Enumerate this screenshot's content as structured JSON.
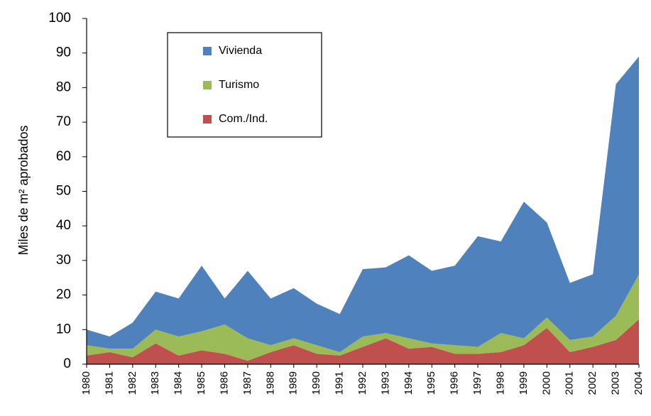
{
  "chart_data": {
    "type": "stacked_area",
    "y_label": "Miles de m² aprobados",
    "categories": [
      "1980",
      "1981",
      "1982",
      "1983",
      "1984",
      "1985",
      "1986",
      "1987",
      "1988",
      "1989",
      "1990",
      "1991",
      "1992",
      "1993",
      "1994",
      "1995",
      "1996",
      "1997",
      "1998",
      "1999",
      "2000",
      "2001",
      "2002",
      "2003",
      "2004"
    ],
    "series": [
      {
        "name": "Com./Ind.",
        "color": "#c0504d",
        "values": [
          2.5,
          3.5,
          2,
          6,
          2.5,
          4,
          3,
          1,
          3.5,
          5.5,
          3,
          2.5,
          5,
          7.5,
          4.5,
          5,
          3,
          3,
          3.5,
          5.5,
          10.5,
          3.5,
          5,
          7,
          13
        ]
      },
      {
        "name": "Turismo",
        "color": "#9bbb59",
        "values": [
          3,
          1,
          2.5,
          4,
          5.5,
          5.5,
          8.5,
          6.5,
          2,
          2,
          2.5,
          1,
          3,
          1.5,
          3,
          1,
          2.5,
          2,
          5.5,
          2,
          3,
          3.5,
          3,
          7,
          13
        ]
      },
      {
        "name": "Vivienda",
        "color": "#4f81bd",
        "values": [
          4.5,
          3.5,
          7.5,
          11,
          11,
          19,
          7.5,
          19.5,
          13.5,
          14.5,
          12,
          11,
          19.5,
          19,
          24,
          21,
          23,
          32,
          26.5,
          39.5,
          27.5,
          16.5,
          18,
          67,
          63
        ]
      }
    ],
    "ylim": [
      0,
      100
    ],
    "yticks": [
      0,
      10,
      20,
      30,
      40,
      50,
      60,
      70,
      80,
      90,
      100
    ],
    "grid": false
  }
}
